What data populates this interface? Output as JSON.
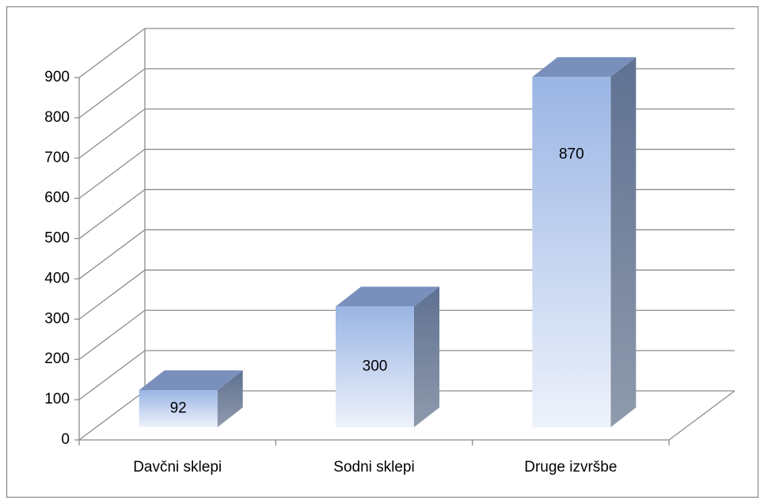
{
  "chart_data": {
    "type": "bar3d",
    "categories": [
      "Davčni sklepi",
      "Sodni sklepi",
      "Druge izvršbe"
    ],
    "values": [
      92,
      300,
      870
    ],
    "ylim": [
      0,
      900
    ],
    "yticks": [
      0,
      100,
      200,
      300,
      400,
      500,
      600,
      700,
      800,
      900
    ],
    "grid": true,
    "color": "#9ab5e4"
  }
}
